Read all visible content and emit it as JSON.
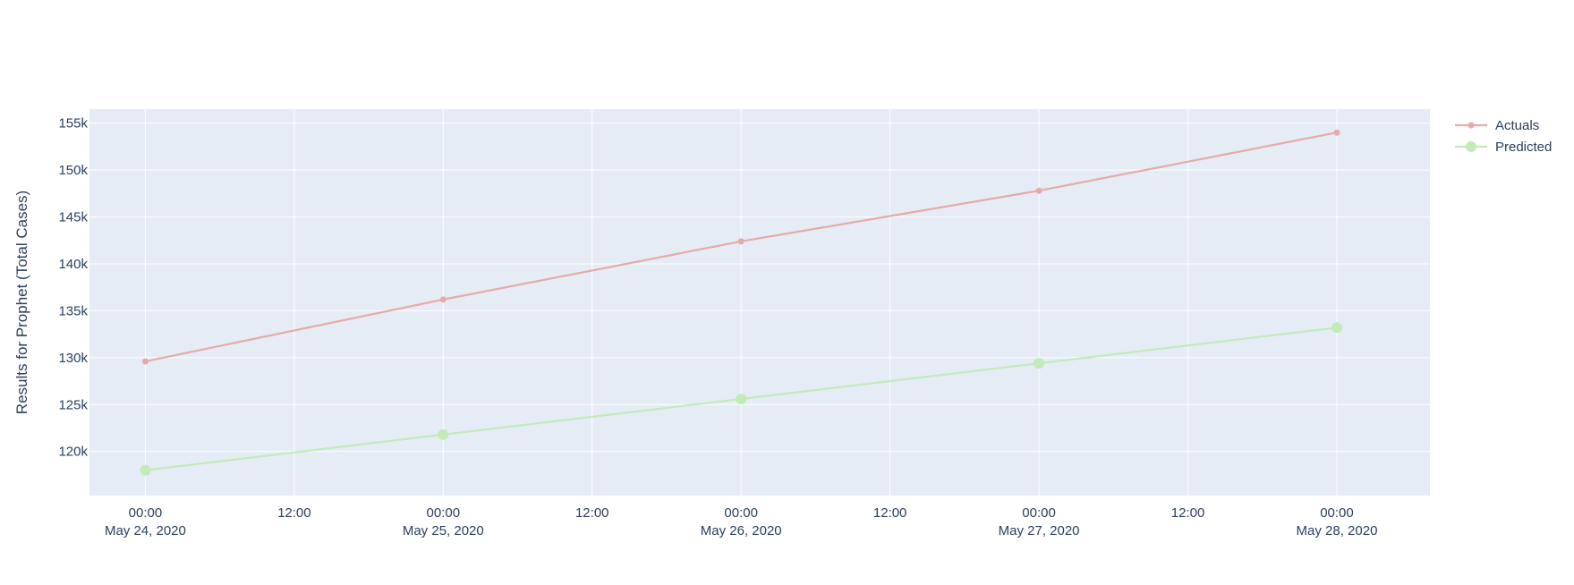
{
  "chart_data": {
    "type": "line",
    "title": "",
    "ylabel": "Results for Prophet (Total Cases)",
    "xlabel": "",
    "x": [
      "2020-05-24",
      "2020-05-25",
      "2020-05-26",
      "2020-05-27",
      "2020-05-28"
    ],
    "xlim": [
      "2020-05-23T19:30",
      "2020-05-28T07:30"
    ],
    "ylim": [
      115300,
      156500
    ],
    "y_ticks": [
      120000,
      125000,
      130000,
      135000,
      140000,
      145000,
      150000,
      155000
    ],
    "y_tick_labels": [
      "120k",
      "125k",
      "130k",
      "135k",
      "140k",
      "145k",
      "150k",
      "155k"
    ],
    "x_ticks": [
      {
        "value": "2020-05-24T00:00",
        "line1": "00:00",
        "line2": "May 24, 2020"
      },
      {
        "value": "2020-05-24T12:00",
        "line1": "12:00",
        "line2": ""
      },
      {
        "value": "2020-05-25T00:00",
        "line1": "00:00",
        "line2": "May 25, 2020"
      },
      {
        "value": "2020-05-25T12:00",
        "line1": "12:00",
        "line2": ""
      },
      {
        "value": "2020-05-26T00:00",
        "line1": "00:00",
        "line2": "May 26, 2020"
      },
      {
        "value": "2020-05-26T12:00",
        "line1": "12:00",
        "line2": ""
      },
      {
        "value": "2020-05-27T00:00",
        "line1": "00:00",
        "line2": "May 27, 2020"
      },
      {
        "value": "2020-05-27T12:00",
        "line1": "12:00",
        "line2": ""
      },
      {
        "value": "2020-05-28T00:00",
        "line1": "00:00",
        "line2": "May 28, 2020"
      }
    ],
    "series": [
      {
        "name": "Actuals",
        "color": "#e6aaa8",
        "marker": "small",
        "values": [
          129600,
          136200,
          142400,
          147800,
          154000
        ]
      },
      {
        "name": "Predicted",
        "color": "#c1ebb7",
        "marker": "large",
        "values": [
          118000,
          121800,
          125600,
          129400,
          133200
        ]
      }
    ],
    "grid": true,
    "legend_position": "top-right",
    "plot_background": "#e5ecf6"
  }
}
